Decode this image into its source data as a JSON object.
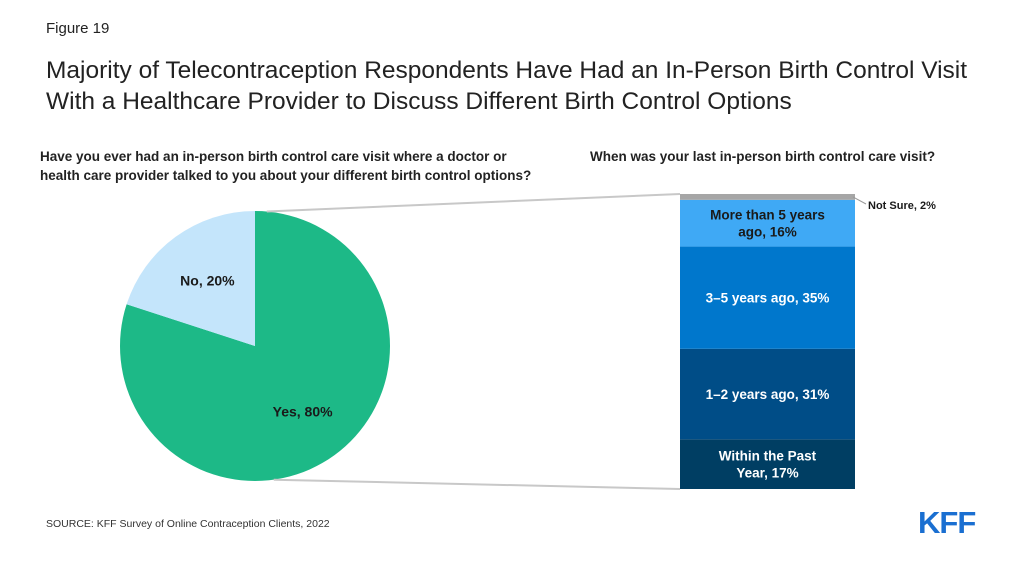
{
  "figure_label": "Figure 19",
  "title": "Majority of Telecontraception Respondents Have Had an In-Person Birth Control Visit With a Healthcare Provider to Discuss Different Birth Control Options",
  "source": "SOURCE: KFF Survey of Online Contraception Clients, 2022",
  "logo": "KFF",
  "chart_data": [
    {
      "type": "pie",
      "title": "Have you ever had an in-person birth control care visit where a doctor or health care provider talked to you about your different birth control options?",
      "slices": [
        {
          "label": "Yes, 80%",
          "value": 80,
          "color": "#1db987"
        },
        {
          "label": "No, 20%",
          "value": 20,
          "color": "#c4e5fb"
        }
      ]
    },
    {
      "type": "bar",
      "stacked": true,
      "title": "When was your last in-person birth control care visit?",
      "segments": [
        {
          "label": "Within the Past Year, 17%",
          "lines": [
            "Within the Past",
            "Year, 17%"
          ],
          "value": 17,
          "color": "#003e63",
          "text_color": "#ffffff"
        },
        {
          "label": "1–2 years ago, 31%",
          "lines": [
            "1–2 years ago, 31%"
          ],
          "value": 31,
          "color": "#004d87",
          "text_color": "#ffffff"
        },
        {
          "label": "3–5 years ago, 35%",
          "lines": [
            "3–5 years ago, 35%"
          ],
          "value": 35,
          "color": "#0077cc",
          "text_color": "#ffffff"
        },
        {
          "label": "More than 5 years ago, 16%",
          "lines": [
            "More than 5 years",
            "ago, 16%"
          ],
          "value": 16,
          "color": "#3fa9f5",
          "text_color": "#1a1a1a"
        },
        {
          "label": "Not Sure, 2%",
          "lines": [
            "Not Sure, 2%"
          ],
          "value": 2,
          "color": "#a6a6a6",
          "text_color": "#1a1a1a",
          "outside": true
        }
      ]
    }
  ]
}
